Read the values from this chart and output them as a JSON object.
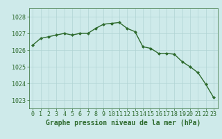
{
  "x": [
    0,
    1,
    2,
    3,
    4,
    5,
    6,
    7,
    8,
    9,
    10,
    11,
    12,
    13,
    14,
    15,
    16,
    17,
    18,
    19,
    20,
    21,
    22,
    23
  ],
  "y": [
    1026.3,
    1026.7,
    1026.8,
    1026.9,
    1027.0,
    1026.9,
    1027.0,
    1027.0,
    1027.3,
    1027.55,
    1027.6,
    1027.65,
    1027.3,
    1027.1,
    1026.2,
    1026.1,
    1025.8,
    1025.8,
    1025.75,
    1025.3,
    1025.0,
    1024.65,
    1023.95,
    1023.15
  ],
  "line_color": "#2d6a2d",
  "marker": "D",
  "marker_size": 2.0,
  "bg_color": "#ceeaea",
  "grid_color": "#b0d4d4",
  "axis_color": "#2d6a2d",
  "xlabel": "Graphe pression niveau de la mer (hPa)",
  "xlabel_fontsize": 7.0,
  "yticks": [
    1023,
    1024,
    1025,
    1026,
    1027,
    1028
  ],
  "xticks": [
    0,
    1,
    2,
    3,
    4,
    5,
    6,
    7,
    8,
    9,
    10,
    11,
    12,
    13,
    14,
    15,
    16,
    17,
    18,
    19,
    20,
    21,
    22,
    23
  ],
  "ylim": [
    1022.5,
    1028.5
  ],
  "xlim": [
    -0.5,
    23.5
  ],
  "tick_fontsize": 6.0,
  "linewidth": 1.0
}
